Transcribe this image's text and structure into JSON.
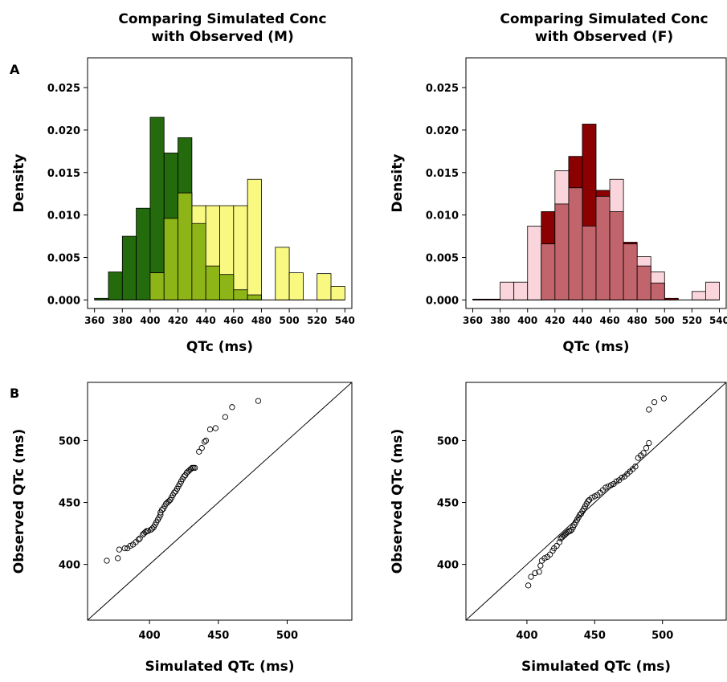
{
  "panel_labels": {
    "a": "A",
    "b": "B"
  },
  "chart_data": [
    {
      "type": "histogram",
      "title": [
        "Comparing Simulated Conc",
        "with Observed (M)"
      ],
      "xlabel": "QTc (ms)",
      "ylabel": "Density",
      "xlim": [
        355,
        545
      ],
      "ylim": [
        -0.001,
        0.0285
      ],
      "xticks": [
        360,
        380,
        400,
        420,
        440,
        460,
        480,
        500,
        520,
        540
      ],
      "yticks": [
        "0.000",
        "0.005",
        "0.010",
        "0.015",
        "0.020",
        "0.025"
      ],
      "bin_width": 10,
      "overlap_color": "#8db517",
      "series": [
        {
          "color": "#236b0d",
          "bins": [
            [
              360,
              0.0002
            ],
            [
              370,
              0.0033
            ],
            [
              380,
              0.0075
            ],
            [
              390,
              0.0108
            ],
            [
              400,
              0.0215
            ],
            [
              410,
              0.0173
            ],
            [
              420,
              0.0191
            ],
            [
              430,
              0.009
            ],
            [
              440,
              0.004
            ],
            [
              450,
              0.003
            ],
            [
              460,
              0.0012
            ],
            [
              470,
              0.0006
            ]
          ]
        },
        {
          "color": "#f9f982",
          "bins": [
            [
              400,
              0.0032
            ],
            [
              410,
              0.0096
            ],
            [
              420,
              0.0126
            ],
            [
              430,
              0.0111
            ],
            [
              440,
              0.0111
            ],
            [
              450,
              0.0111
            ],
            [
              460,
              0.0111
            ],
            [
              470,
              0.0142
            ],
            [
              490,
              0.0062
            ],
            [
              500,
              0.0032
            ],
            [
              520,
              0.0031
            ],
            [
              530,
              0.0016
            ]
          ]
        }
      ]
    },
    {
      "type": "histogram",
      "title": [
        "Comparing Simulated Conc",
        "with Observed (F)"
      ],
      "xlabel": "QTc (ms)",
      "ylabel": "Density",
      "xlim": [
        355,
        545
      ],
      "ylim": [
        -0.001,
        0.0285
      ],
      "xticks": [
        360,
        380,
        400,
        420,
        440,
        460,
        480,
        500,
        520,
        540
      ],
      "yticks": [
        "0.000",
        "0.005",
        "0.010",
        "0.015",
        "0.020",
        "0.025"
      ],
      "bin_width": 10,
      "overlap_color": "#c2646b",
      "series": [
        {
          "color": "#8b0000",
          "bins": [
            [
              360,
              0.0001
            ],
            [
              370,
              0.0001
            ],
            [
              380,
              0.0001
            ],
            [
              390,
              0.0001
            ],
            [
              400,
              0.0001
            ],
            [
              410,
              0.0104
            ],
            [
              420,
              0.0113
            ],
            [
              430,
              0.0169
            ],
            [
              440,
              0.0207
            ],
            [
              450,
              0.0129
            ],
            [
              460,
              0.0104
            ],
            [
              470,
              0.0068
            ],
            [
              480,
              0.004
            ],
            [
              490,
              0.002
            ],
            [
              500,
              0.0002
            ]
          ]
        },
        {
          "color": "#fad6dc",
          "bins": [
            [
              380,
              0.0021
            ],
            [
              390,
              0.0021
            ],
            [
              400,
              0.0087
            ],
            [
              410,
              0.0066
            ],
            [
              420,
              0.0152
            ],
            [
              430,
              0.0132
            ],
            [
              440,
              0.0087
            ],
            [
              450,
              0.0122
            ],
            [
              460,
              0.0142
            ],
            [
              470,
              0.0066
            ],
            [
              480,
              0.0051
            ],
            [
              490,
              0.0033
            ],
            [
              520,
              0.001
            ],
            [
              530,
              0.0021
            ]
          ]
        }
      ]
    },
    {
      "type": "scatter",
      "title": "",
      "xlabel": "Simulated QTc (ms)",
      "ylabel": "Observed QTc (ms)",
      "xlim": [
        355,
        547
      ],
      "ylim": [
        355,
        547
      ],
      "xticks": [
        400,
        450,
        500
      ],
      "yticks": [
        400,
        450,
        500
      ],
      "reference_line": "y = x",
      "points": [
        [
          369,
          403
        ],
        [
          377,
          405
        ],
        [
          378,
          412
        ],
        [
          382,
          413
        ],
        [
          384,
          413
        ],
        [
          386,
          415
        ],
        [
          388,
          416
        ],
        [
          390,
          418
        ],
        [
          392,
          420
        ],
        [
          393,
          421
        ],
        [
          395,
          424
        ],
        [
          396,
          425
        ],
        [
          397,
          426
        ],
        [
          398,
          427
        ],
        [
          399,
          427
        ],
        [
          401,
          428
        ],
        [
          402,
          429
        ],
        [
          403,
          430
        ],
        [
          404,
          432
        ],
        [
          405,
          434
        ],
        [
          406,
          436
        ],
        [
          407,
          438
        ],
        [
          408,
          440
        ],
        [
          408,
          442
        ],
        [
          409,
          444
        ],
        [
          410,
          445
        ],
        [
          411,
          447
        ],
        [
          412,
          449
        ],
        [
          413,
          450
        ],
        [
          414,
          451
        ],
        [
          415,
          452
        ],
        [
          416,
          454
        ],
        [
          417,
          456
        ],
        [
          418,
          458
        ],
        [
          419,
          459
        ],
        [
          420,
          461
        ],
        [
          421,
          463
        ],
        [
          422,
          465
        ],
        [
          423,
          467
        ],
        [
          424,
          469
        ],
        [
          425,
          471
        ],
        [
          426,
          472
        ],
        [
          427,
          474
        ],
        [
          428,
          475
        ],
        [
          429,
          476
        ],
        [
          430,
          477
        ],
        [
          431,
          478
        ],
        [
          432,
          478
        ],
        [
          433,
          478
        ],
        [
          436,
          491
        ],
        [
          438,
          494
        ],
        [
          440,
          499
        ],
        [
          441,
          500
        ],
        [
          444,
          509
        ],
        [
          448,
          510
        ],
        [
          455,
          519
        ],
        [
          460,
          527
        ],
        [
          479,
          532
        ]
      ]
    },
    {
      "type": "scatter",
      "title": "",
      "xlabel": "Simulated QTc (ms)",
      "ylabel": "Observed QTc (ms)",
      "xlim": [
        355,
        547
      ],
      "ylim": [
        355,
        547
      ],
      "xticks": [
        400,
        450,
        500
      ],
      "yticks": [
        400,
        450,
        500
      ],
      "reference_line": "y = x",
      "points": [
        [
          401,
          383
        ],
        [
          403,
          390
        ],
        [
          406,
          393
        ],
        [
          409,
          394
        ],
        [
          410,
          399
        ],
        [
          411,
          403
        ],
        [
          413,
          405
        ],
        [
          415,
          406
        ],
        [
          417,
          408
        ],
        [
          419,
          411
        ],
        [
          420,
          413
        ],
        [
          422,
          415
        ],
        [
          424,
          418
        ],
        [
          425,
          421
        ],
        [
          426,
          422
        ],
        [
          427,
          423
        ],
        [
          428,
          424
        ],
        [
          429,
          425
        ],
        [
          430,
          426
        ],
        [
          431,
          427
        ],
        [
          432,
          427
        ],
        [
          433,
          428
        ],
        [
          434,
          430
        ],
        [
          435,
          432
        ],
        [
          436,
          434
        ],
        [
          437,
          436
        ],
        [
          438,
          438
        ],
        [
          439,
          440
        ],
        [
          440,
          441
        ],
        [
          441,
          443
        ],
        [
          442,
          445
        ],
        [
          443,
          447
        ],
        [
          444,
          449
        ],
        [
          445,
          451
        ],
        [
          446,
          452
        ],
        [
          448,
          454
        ],
        [
          450,
          455
        ],
        [
          452,
          456
        ],
        [
          454,
          458
        ],
        [
          456,
          460
        ],
        [
          458,
          462
        ],
        [
          460,
          463
        ],
        [
          462,
          464
        ],
        [
          464,
          465
        ],
        [
          466,
          467
        ],
        [
          468,
          468
        ],
        [
          470,
          470
        ],
        [
          472,
          471
        ],
        [
          474,
          473
        ],
        [
          476,
          475
        ],
        [
          478,
          477
        ],
        [
          480,
          479
        ],
        [
          482,
          486
        ],
        [
          484,
          488
        ],
        [
          486,
          490
        ],
        [
          488,
          494
        ],
        [
          490,
          498
        ],
        [
          490,
          525
        ],
        [
          494,
          531
        ],
        [
          501,
          534
        ]
      ]
    }
  ]
}
